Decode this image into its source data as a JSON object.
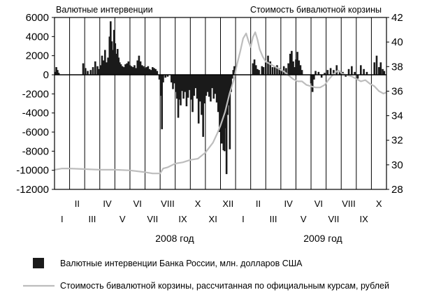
{
  "chart_data": {
    "type": "bar",
    "left_axis_title": "Валютные интервенции",
    "right_axis_title": "Стоимость бивалютной корзины",
    "left_axis": {
      "ylim": [
        -12000,
        6000
      ],
      "ticks": [
        "6000",
        "4000",
        "2000",
        "0",
        "-2000",
        "-4000",
        "-6000",
        "-8000",
        "-10000",
        "-12000"
      ]
    },
    "right_axis": {
      "ylim": [
        28,
        42
      ],
      "ticks": [
        "42",
        "40",
        "38",
        "36",
        "34",
        "32",
        "30",
        "28"
      ]
    },
    "x_months_2008": [
      "I",
      "II",
      "III",
      "IV",
      "V",
      "VI",
      "VII",
      "VIII",
      "IX",
      "X",
      "XI",
      "XII"
    ],
    "x_months_2009": [
      "I",
      "II",
      "III",
      "IV",
      "V",
      "VI",
      "VII",
      "VIII",
      "IX",
      "X"
    ],
    "year_labels": [
      "2008 год",
      "2009 год"
    ],
    "legend": [
      {
        "label": "Валютные интервенции Банка России, млн. долларов США",
        "kind": "bar",
        "color": "#1a1a1a"
      },
      {
        "label": "Стоимость бивалютной корзины, рассчитанная по официальным курсам, рублей",
        "kind": "line",
        "color": "#bdbdbd"
      }
    ],
    "x_range_months": [
      0,
      22
    ],
    "intervention_series": {
      "name": "Валютные интервенции Банка России, млн. долларов США",
      "points": [
        [
          0.05,
          300
        ],
        [
          0.12,
          800
        ],
        [
          0.2,
          500
        ],
        [
          0.28,
          200
        ],
        [
          1.9,
          1200
        ],
        [
          2.05,
          700
        ],
        [
          2.2,
          400
        ],
        [
          2.4,
          500
        ],
        [
          2.55,
          800
        ],
        [
          2.7,
          1400
        ],
        [
          2.85,
          900
        ],
        [
          2.95,
          600
        ],
        [
          3.05,
          1000
        ],
        [
          3.15,
          2000
        ],
        [
          3.25,
          1500
        ],
        [
          3.35,
          2600
        ],
        [
          3.45,
          1300
        ],
        [
          3.55,
          1800
        ],
        [
          3.65,
          4000
        ],
        [
          3.72,
          5600
        ],
        [
          3.8,
          3500
        ],
        [
          3.88,
          2600
        ],
        [
          3.95,
          4700
        ],
        [
          4.02,
          3300
        ],
        [
          4.1,
          2200
        ],
        [
          4.18,
          2700
        ],
        [
          4.25,
          1800
        ],
        [
          4.32,
          1300
        ],
        [
          4.4,
          1100
        ],
        [
          4.5,
          900
        ],
        [
          4.6,
          800
        ],
        [
          4.7,
          1100
        ],
        [
          4.8,
          1200
        ],
        [
          4.9,
          1400
        ],
        [
          5.0,
          1000
        ],
        [
          5.1,
          900
        ],
        [
          5.2,
          800
        ],
        [
          5.3,
          1000
        ],
        [
          5.4,
          700
        ],
        [
          5.5,
          1500
        ],
        [
          5.6,
          2000
        ],
        [
          5.7,
          1400
        ],
        [
          5.8,
          1000
        ],
        [
          5.9,
          900
        ],
        [
          6.0,
          700
        ],
        [
          6.1,
          800
        ],
        [
          6.2,
          900
        ],
        [
          6.3,
          600
        ],
        [
          6.4,
          500
        ],
        [
          6.5,
          800
        ],
        [
          6.6,
          700
        ],
        [
          6.7,
          600
        ],
        [
          6.8,
          400
        ],
        [
          6.95,
          -500
        ],
        [
          7.05,
          -2200
        ],
        [
          7.12,
          -5700
        ],
        [
          7.2,
          -800
        ],
        [
          7.35,
          -300
        ],
        [
          7.5,
          -200
        ],
        [
          7.75,
          -800
        ],
        [
          7.85,
          -1500
        ],
        [
          7.95,
          -900
        ],
        [
          8.05,
          -1800
        ],
        [
          8.12,
          -2500
        ],
        [
          8.2,
          -4500
        ],
        [
          8.28,
          -2600
        ],
        [
          8.36,
          -3200
        ],
        [
          8.44,
          -1700
        ],
        [
          8.55,
          -2500
        ],
        [
          8.65,
          -1800
        ],
        [
          8.75,
          -3300
        ],
        [
          8.85,
          -2400
        ],
        [
          8.95,
          -1600
        ],
        [
          9.05,
          -2600
        ],
        [
          9.15,
          -3900
        ],
        [
          9.25,
          -2200
        ],
        [
          9.35,
          -1400
        ],
        [
          9.45,
          -2500
        ],
        [
          9.55,
          -5100
        ],
        [
          9.65,
          -2800
        ],
        [
          9.75,
          -4200
        ],
        [
          9.85,
          -6500
        ],
        [
          9.95,
          -3000
        ],
        [
          10.05,
          -2200
        ],
        [
          10.15,
          -1800
        ],
        [
          10.25,
          -2300
        ],
        [
          10.35,
          -2800
        ],
        [
          10.45,
          -1400
        ],
        [
          10.55,
          -2500
        ],
        [
          10.65,
          -2000
        ],
        [
          10.75,
          -2900
        ],
        [
          10.85,
          -3900
        ],
        [
          10.95,
          -6000
        ],
        [
          11.02,
          -5500
        ],
        [
          11.08,
          -7200
        ],
        [
          11.14,
          -6300
        ],
        [
          11.2,
          -7900
        ],
        [
          11.27,
          -8000
        ],
        [
          11.33,
          -5600
        ],
        [
          11.4,
          -10400
        ],
        [
          11.47,
          -4200
        ],
        [
          11.55,
          -3200
        ],
        [
          11.62,
          -7800
        ],
        [
          11.7,
          -1800
        ],
        [
          11.78,
          -400
        ],
        [
          11.85,
          500
        ],
        [
          11.92,
          900
        ],
        [
          13.15,
          1200
        ],
        [
          13.25,
          1600
        ],
        [
          13.35,
          1000
        ],
        [
          13.45,
          600
        ],
        [
          13.55,
          500
        ],
        [
          13.75,
          900
        ],
        [
          13.85,
          800
        ],
        [
          14.0,
          1300
        ],
        [
          14.15,
          2000
        ],
        [
          14.3,
          1400
        ],
        [
          14.45,
          800
        ],
        [
          14.6,
          900
        ],
        [
          14.75,
          1000
        ],
        [
          14.9,
          700
        ],
        [
          15.05,
          500
        ],
        [
          15.2,
          900
        ],
        [
          15.35,
          700
        ],
        [
          15.5,
          1200
        ],
        [
          15.62,
          2200
        ],
        [
          15.72,
          2500
        ],
        [
          15.82,
          1400
        ],
        [
          15.92,
          800
        ],
        [
          16.0,
          1600
        ],
        [
          16.1,
          2400
        ],
        [
          16.2,
          1500
        ],
        [
          16.3,
          1000
        ],
        [
          16.4,
          500
        ],
        [
          17.0,
          -900
        ],
        [
          17.1,
          -1800
        ],
        [
          17.2,
          -500
        ],
        [
          17.3,
          400
        ],
        [
          17.5,
          300
        ],
        [
          17.7,
          -300
        ],
        [
          17.9,
          200
        ],
        [
          18.1,
          500
        ],
        [
          18.3,
          700
        ],
        [
          18.5,
          500
        ],
        [
          18.7,
          1000
        ],
        [
          18.9,
          400
        ],
        [
          19.1,
          300
        ],
        [
          19.3,
          -200
        ],
        [
          19.5,
          600
        ],
        [
          19.7,
          900
        ],
        [
          19.9,
          300
        ],
        [
          20.1,
          -400
        ],
        [
          20.3,
          1000
        ],
        [
          20.5,
          600
        ],
        [
          20.7,
          300
        ],
        [
          21.2,
          1300
        ],
        [
          21.35,
          2000
        ],
        [
          21.5,
          800
        ],
        [
          21.62,
          1300
        ],
        [
          21.75,
          600
        ],
        [
          21.85,
          400
        ]
      ]
    },
    "basket_series": {
      "name": "Стоимость бивалютной корзины, рассчитанная по официальным курсам, рублей",
      "points": [
        [
          0,
          29.6
        ],
        [
          0.5,
          29.7
        ],
        [
          1,
          29.7
        ],
        [
          2,
          29.65
        ],
        [
          3,
          29.6
        ],
        [
          4,
          29.6
        ],
        [
          5,
          29.55
        ],
        [
          6,
          29.4
        ],
        [
          6.5,
          29.3
        ],
        [
          7,
          29.3
        ],
        [
          7.2,
          29.7
        ],
        [
          7.5,
          29.8
        ],
        [
          8,
          30.1
        ],
        [
          8.5,
          30.2
        ],
        [
          9,
          30.4
        ],
        [
          9.5,
          30.5
        ],
        [
          10,
          31.0
        ],
        [
          10.5,
          31.8
        ],
        [
          10.8,
          32.6
        ],
        [
          11,
          33.2
        ],
        [
          11.3,
          34.3
        ],
        [
          11.6,
          35.8
        ],
        [
          11.9,
          37.0
        ],
        [
          12.1,
          38.2
        ],
        [
          12.3,
          39.2
        ],
        [
          12.5,
          40.3
        ],
        [
          12.7,
          40.7
        ],
        [
          12.85,
          40.1
        ],
        [
          13.0,
          39.6
        ],
        [
          13.15,
          40.4
        ],
        [
          13.3,
          40.8
        ],
        [
          13.45,
          40.2
        ],
        [
          13.6,
          39.4
        ],
        [
          13.8,
          38.8
        ],
        [
          14.0,
          38.4
        ],
        [
          14.3,
          38.2
        ],
        [
          14.6,
          38.0
        ],
        [
          14.9,
          37.8
        ],
        [
          15.2,
          37.6
        ],
        [
          15.5,
          37.3
        ],
        [
          15.8,
          37.0
        ],
        [
          16.1,
          36.8
        ],
        [
          16.4,
          36.8
        ],
        [
          16.7,
          36.5
        ],
        [
          17.0,
          36.4
        ],
        [
          17.3,
          36.3
        ],
        [
          17.6,
          36.3
        ],
        [
          17.9,
          36.5
        ],
        [
          18.2,
          37.0
        ],
        [
          18.5,
          37.4
        ],
        [
          18.8,
          37.7
        ],
        [
          19.1,
          37.4
        ],
        [
          19.4,
          37.3
        ],
        [
          19.7,
          37.2
        ],
        [
          20.0,
          37.0
        ],
        [
          20.3,
          36.8
        ],
        [
          20.6,
          36.9
        ],
        [
          20.9,
          36.6
        ],
        [
          21.2,
          36.4
        ],
        [
          21.5,
          36.0
        ],
        [
          21.8,
          35.8
        ],
        [
          22.0,
          35.9
        ]
      ]
    }
  }
}
